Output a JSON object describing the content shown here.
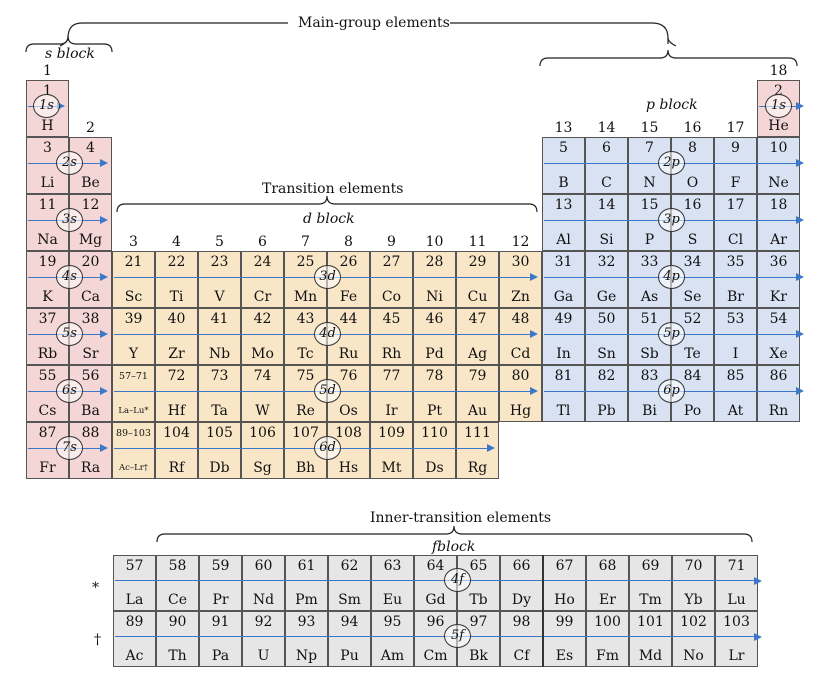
{
  "labels": {
    "main_group": "Main-group elements",
    "s_block": "s block",
    "p_block": "p block",
    "transition": "Transition elements",
    "d_block": "d block",
    "inner_transition": "Inner-transition  elements",
    "f_block": "fblock",
    "lanthanide_marker": "*",
    "actinide_marker": "†"
  },
  "groups": [
    "1",
    "2",
    "3",
    "4",
    "5",
    "6",
    "7",
    "8",
    "9",
    "10",
    "11",
    "12",
    "13",
    "14",
    "15",
    "16",
    "17",
    "18"
  ],
  "orbitals": {
    "s": [
      "1s",
      "2s",
      "3s",
      "4s",
      "5s",
      "6s",
      "7s"
    ],
    "p": [
      "1s",
      "2p",
      "3p",
      "4p",
      "5p",
      "6p"
    ],
    "d": [
      "3d",
      "4d",
      "5d",
      "6d"
    ],
    "f": [
      "4f",
      "5f"
    ]
  },
  "s_cells": [
    {
      "n": "1",
      "s": "H"
    },
    {
      "n": "3",
      "s": "Li"
    },
    {
      "n": "4",
      "s": "Be"
    },
    {
      "n": "11",
      "s": "Na"
    },
    {
      "n": "12",
      "s": "Mg"
    },
    {
      "n": "19",
      "s": "K"
    },
    {
      "n": "20",
      "s": "Ca"
    },
    {
      "n": "37",
      "s": "Rb"
    },
    {
      "n": "38",
      "s": "Sr"
    },
    {
      "n": "55",
      "s": "Cs"
    },
    {
      "n": "56",
      "s": "Ba"
    },
    {
      "n": "87",
      "s": "Fr"
    },
    {
      "n": "88",
      "s": "Ra"
    }
  ],
  "d_rows": [
    [
      {
        "n": "21",
        "s": "Sc"
      },
      {
        "n": "22",
        "s": "Ti"
      },
      {
        "n": "23",
        "s": "V"
      },
      {
        "n": "24",
        "s": "Cr"
      },
      {
        "n": "25",
        "s": "Mn"
      },
      {
        "n": "26",
        "s": "Fe"
      },
      {
        "n": "27",
        "s": "Co"
      },
      {
        "n": "28",
        "s": "Ni"
      },
      {
        "n": "29",
        "s": "Cu"
      },
      {
        "n": "30",
        "s": "Zn"
      }
    ],
    [
      {
        "n": "39",
        "s": "Y"
      },
      {
        "n": "40",
        "s": "Zr"
      },
      {
        "n": "41",
        "s": "Nb"
      },
      {
        "n": "42",
        "s": "Mo"
      },
      {
        "n": "43",
        "s": "Tc"
      },
      {
        "n": "44",
        "s": "Ru"
      },
      {
        "n": "45",
        "s": "Rh"
      },
      {
        "n": "46",
        "s": "Pd"
      },
      {
        "n": "47",
        "s": "Ag"
      },
      {
        "n": "48",
        "s": "Cd"
      }
    ],
    [
      {
        "n": "57–71",
        "s": "La–Lu*"
      },
      {
        "n": "72",
        "s": "Hf"
      },
      {
        "n": "73",
        "s": "Ta"
      },
      {
        "n": "74",
        "s": "W"
      },
      {
        "n": "75",
        "s": "Re"
      },
      {
        "n": "76",
        "s": "Os"
      },
      {
        "n": "77",
        "s": "Ir"
      },
      {
        "n": "78",
        "s": "Pt"
      },
      {
        "n": "79",
        "s": "Au"
      },
      {
        "n": "80",
        "s": "Hg"
      }
    ],
    [
      {
        "n": "89–103",
        "s": "Ac–Lr†"
      },
      {
        "n": "104",
        "s": "Rf"
      },
      {
        "n": "105",
        "s": "Db"
      },
      {
        "n": "106",
        "s": "Sg"
      },
      {
        "n": "107",
        "s": "Bh"
      },
      {
        "n": "108",
        "s": "Hs"
      },
      {
        "n": "109",
        "s": "Mt"
      },
      {
        "n": "110",
        "s": "Ds"
      },
      {
        "n": "111",
        "s": "Rg"
      }
    ]
  ],
  "p_rows": [
    [
      {
        "n": "5",
        "s": "B"
      },
      {
        "n": "6",
        "s": "C"
      },
      {
        "n": "7",
        "s": "N"
      },
      {
        "n": "8",
        "s": "O"
      },
      {
        "n": "9",
        "s": "F"
      },
      {
        "n": "10",
        "s": "Ne"
      }
    ],
    [
      {
        "n": "13",
        "s": "Al"
      },
      {
        "n": "14",
        "s": "Si"
      },
      {
        "n": "15",
        "s": "P"
      },
      {
        "n": "16",
        "s": "S"
      },
      {
        "n": "17",
        "s": "Cl"
      },
      {
        "n": "18",
        "s": "Ar"
      }
    ],
    [
      {
        "n": "31",
        "s": "Ga"
      },
      {
        "n": "32",
        "s": "Ge"
      },
      {
        "n": "33",
        "s": "As"
      },
      {
        "n": "34",
        "s": "Se"
      },
      {
        "n": "35",
        "s": "Br"
      },
      {
        "n": "36",
        "s": "Kr"
      }
    ],
    [
      {
        "n": "49",
        "s": "In"
      },
      {
        "n": "50",
        "s": "Sn"
      },
      {
        "n": "51",
        "s": "Sb"
      },
      {
        "n": "52",
        "s": "Te"
      },
      {
        "n": "53",
        "s": "I"
      },
      {
        "n": "54",
        "s": "Xe"
      }
    ],
    [
      {
        "n": "81",
        "s": "Tl"
      },
      {
        "n": "82",
        "s": "Pb"
      },
      {
        "n": "83",
        "s": "Bi"
      },
      {
        "n": "84",
        "s": "Po"
      },
      {
        "n": "85",
        "s": "At"
      },
      {
        "n": "86",
        "s": "Rn"
      }
    ]
  ],
  "he_cell": {
    "n": "2",
    "s": "He"
  },
  "f_rows": [
    [
      {
        "n": "57",
        "s": "La"
      },
      {
        "n": "58",
        "s": "Ce"
      },
      {
        "n": "59",
        "s": "Pr"
      },
      {
        "n": "60",
        "s": "Nd"
      },
      {
        "n": "61",
        "s": "Pm"
      },
      {
        "n": "62",
        "s": "Sm"
      },
      {
        "n": "63",
        "s": "Eu"
      },
      {
        "n": "64",
        "s": "Gd"
      },
      {
        "n": "65",
        "s": "Tb"
      },
      {
        "n": "66",
        "s": "Dy"
      },
      {
        "n": "67",
        "s": "Ho"
      },
      {
        "n": "68",
        "s": "Er"
      },
      {
        "n": "69",
        "s": "Tm"
      },
      {
        "n": "70",
        "s": "Yb"
      },
      {
        "n": "71",
        "s": "Lu"
      }
    ],
    [
      {
        "n": "89",
        "s": "Ac"
      },
      {
        "n": "90",
        "s": "Th"
      },
      {
        "n": "91",
        "s": "Pa"
      },
      {
        "n": "92",
        "s": "U"
      },
      {
        "n": "93",
        "s": "Np"
      },
      {
        "n": "94",
        "s": "Pu"
      },
      {
        "n": "95",
        "s": "Am"
      },
      {
        "n": "96",
        "s": "Cm"
      },
      {
        "n": "97",
        "s": "Bk"
      },
      {
        "n": "98",
        "s": "Cf"
      },
      {
        "n": "99",
        "s": "Es"
      },
      {
        "n": "100",
        "s": "Fm"
      },
      {
        "n": "101",
        "s": "Md"
      },
      {
        "n": "102",
        "s": "No"
      },
      {
        "n": "103",
        "s": "Lr"
      }
    ]
  ],
  "colors": {
    "s_block": "#f5d6d6",
    "d_block": "#f9e6c7",
    "p_block": "#d9e2f3",
    "f_block": "#e6e6e6",
    "arrow": "#3c78c8"
  }
}
